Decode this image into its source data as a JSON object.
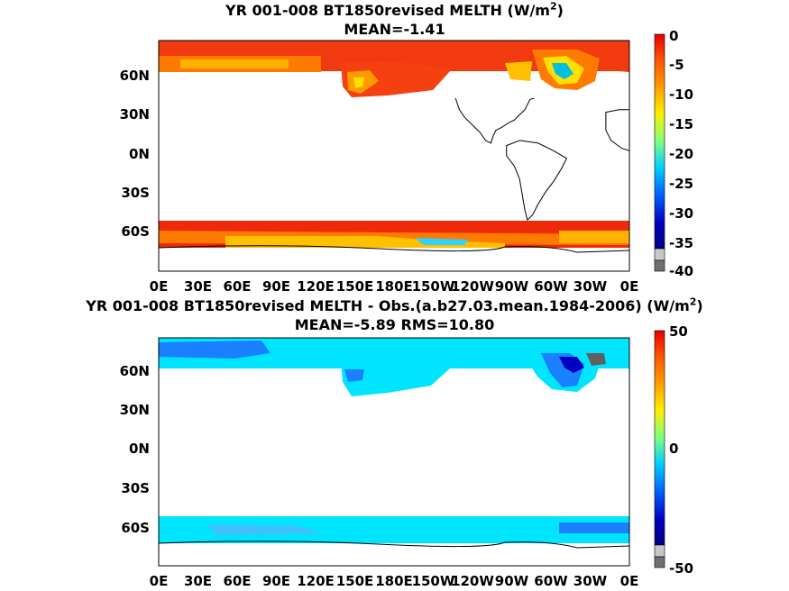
{
  "panels": [
    {
      "title_main": "YR 001-008 BT1850revised  MELTH (W/m",
      "title_sup": "2",
      "title_end": ")",
      "subtitle": "MEAN=-1.41",
      "colorbar_ticks": [
        "0",
        "-5",
        "-10",
        "-15",
        "-20",
        "-25",
        "-30",
        "-35",
        "-40"
      ],
      "colorbar_range": [
        -40,
        0
      ]
    },
    {
      "title_main": "YR 001-008 BT1850revised MELTH - Obs.(a.b27.03.mean.1984-2006) (W/m",
      "title_sup": "2",
      "title_end": ")",
      "subtitle": "MEAN=-5.89 RMS=10.80",
      "colorbar_ticks": [
        "50",
        "0",
        "-50"
      ],
      "colorbar_range": [
        -50,
        50
      ]
    }
  ],
  "lat_labels": [
    "60N",
    "30N",
    "0N",
    "30S",
    "60S"
  ],
  "lon_labels": [
    "0E",
    "30E",
    "60E",
    "90E",
    "120E",
    "150E",
    "180E",
    "150W",
    "120W",
    "90W",
    "60W",
    "30W",
    "0E"
  ],
  "colors": {
    "panel1_arctic": "#f23a10",
    "panel1_southern": "#ee2a0a",
    "panel1_mid": "#ff9a00",
    "panel1_yellow": "#ffe000",
    "panel2_fill": "#00e5ff",
    "panel2_deep": "#1a80ff",
    "land": "#ffffff",
    "coast": "#000000"
  }
}
